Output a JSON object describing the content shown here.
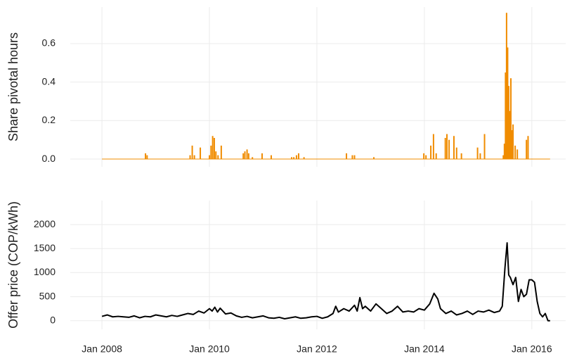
{
  "chart_data": [
    {
      "type": "bar",
      "y_label": "Share pivotal hours",
      "color": "#f08c00",
      "grid": true,
      "x": [
        2008.0,
        2008.81,
        2008.84,
        2009.64,
        2009.68,
        2009.72,
        2009.83,
        2010.0,
        2010.03,
        2010.06,
        2010.09,
        2010.12,
        2010.16,
        2010.22,
        2010.63,
        2010.66,
        2010.7,
        2010.73,
        2010.8,
        2010.98,
        2011.15,
        2011.53,
        2011.57,
        2011.62,
        2011.66,
        2011.76,
        2012.55,
        2012.66,
        2012.7,
        2013.06,
        2013.99,
        2014.03,
        2014.12,
        2014.17,
        2014.22,
        2014.39,
        2014.42,
        2014.46,
        2014.55,
        2014.6,
        2014.69,
        2014.99,
        2015.04,
        2015.12,
        2015.47,
        2015.49,
        2015.51,
        2015.53,
        2015.55,
        2015.57,
        2015.59,
        2015.61,
        2015.63,
        2015.65,
        2015.69,
        2015.73,
        2015.9,
        2015.93,
        2016.34
      ],
      "values": [
        0,
        0.03,
        0.02,
        0.02,
        0.07,
        0.02,
        0.06,
        0.02,
        0.07,
        0.12,
        0.11,
        0.04,
        0.02,
        0.07,
        0.03,
        0.04,
        0.05,
        0.03,
        0.01,
        0.03,
        0.02,
        0.01,
        0.01,
        0.02,
        0.03,
        0.01,
        0.03,
        0.02,
        0.02,
        0.01,
        0.03,
        0.02,
        0.07,
        0.13,
        0.03,
        0.11,
        0.13,
        0.1,
        0.12,
        0.06,
        0.03,
        0.06,
        0.03,
        0.13,
        0.02,
        0.08,
        0.45,
        0.76,
        0.58,
        0.38,
        0.25,
        0.42,
        0.15,
        0.18,
        0.07,
        0.05,
        0.1,
        0.12,
        0
      ],
      "xlim": [
        2007.41,
        2016.63
      ],
      "ylim": [
        -0.04,
        0.79
      ],
      "xticks": [
        {
          "value": 2008,
          "label": "Jan 2008"
        },
        {
          "value": 2010,
          "label": "Jan 2010"
        },
        {
          "value": 2012,
          "label": "Jan 2012"
        },
        {
          "value": 2014,
          "label": "Jan 2014"
        },
        {
          "value": 2016,
          "label": "Jan 2016"
        }
      ],
      "yticks": [
        {
          "value": 0,
          "label": "0.0"
        },
        0.2,
        0.4,
        0.6
      ]
    },
    {
      "type": "line",
      "y_label": "Offer price (COP/kWh)",
      "color": "#000000",
      "grid": true,
      "x": [
        2008.0,
        2008.1,
        2008.2,
        2008.3,
        2008.4,
        2008.5,
        2008.6,
        2008.7,
        2008.8,
        2008.9,
        2009.0,
        2009.1,
        2009.2,
        2009.3,
        2009.4,
        2009.5,
        2009.6,
        2009.7,
        2009.8,
        2009.9,
        2010.0,
        2010.05,
        2010.1,
        2010.15,
        2010.2,
        2010.3,
        2010.4,
        2010.5,
        2010.6,
        2010.7,
        2010.8,
        2010.9,
        2011.0,
        2011.1,
        2011.2,
        2011.3,
        2011.4,
        2011.5,
        2011.6,
        2011.7,
        2011.8,
        2011.9,
        2012.0,
        2012.1,
        2012.2,
        2012.3,
        2012.35,
        2012.4,
        2012.5,
        2012.6,
        2012.7,
        2012.75,
        2012.8,
        2012.85,
        2012.9,
        2013.0,
        2013.1,
        2013.2,
        2013.3,
        2013.4,
        2013.5,
        2013.6,
        2013.7,
        2013.8,
        2013.9,
        2014.0,
        2014.1,
        2014.18,
        2014.25,
        2014.3,
        2014.4,
        2014.5,
        2014.6,
        2014.7,
        2014.8,
        2014.9,
        2015.0,
        2015.1,
        2015.2,
        2015.3,
        2015.4,
        2015.45,
        2015.5,
        2015.54,
        2015.57,
        2015.6,
        2015.65,
        2015.7,
        2015.75,
        2015.8,
        2015.85,
        2015.9,
        2015.95,
        2016.0,
        2016.05,
        2016.1,
        2016.15,
        2016.2,
        2016.25,
        2016.3,
        2016.34
      ],
      "values": [
        90,
        120,
        80,
        90,
        80,
        70,
        100,
        60,
        90,
        80,
        120,
        100,
        80,
        110,
        90,
        120,
        150,
        130,
        200,
        160,
        250,
        200,
        280,
        180,
        260,
        140,
        160,
        100,
        70,
        90,
        60,
        80,
        100,
        60,
        50,
        70,
        40,
        60,
        80,
        50,
        60,
        80,
        90,
        50,
        80,
        150,
        300,
        180,
        250,
        200,
        320,
        200,
        480,
        250,
        300,
        200,
        350,
        250,
        150,
        200,
        300,
        180,
        200,
        180,
        250,
        220,
        350,
        570,
        450,
        250,
        150,
        200,
        120,
        150,
        200,
        130,
        200,
        180,
        220,
        170,
        200,
        300,
        1100,
        1620,
        950,
        900,
        750,
        900,
        400,
        650,
        500,
        550,
        850,
        850,
        800,
        400,
        150,
        80,
        150,
        0,
        0
      ],
      "xlim": [
        2007.41,
        2016.63
      ],
      "ylim": [
        -180,
        2500
      ],
      "xticks": [
        {
          "value": 2008,
          "label": "Jan 2008"
        },
        {
          "value": 2010,
          "label": "Jan 2010"
        },
        {
          "value": 2012,
          "label": "Jan 2012"
        },
        {
          "value": 2014,
          "label": "Jan 2014"
        },
        {
          "value": 2016,
          "label": "Jan 2016"
        }
      ],
      "yticks": [
        0,
        500,
        1000,
        1500,
        2000
      ]
    }
  ]
}
